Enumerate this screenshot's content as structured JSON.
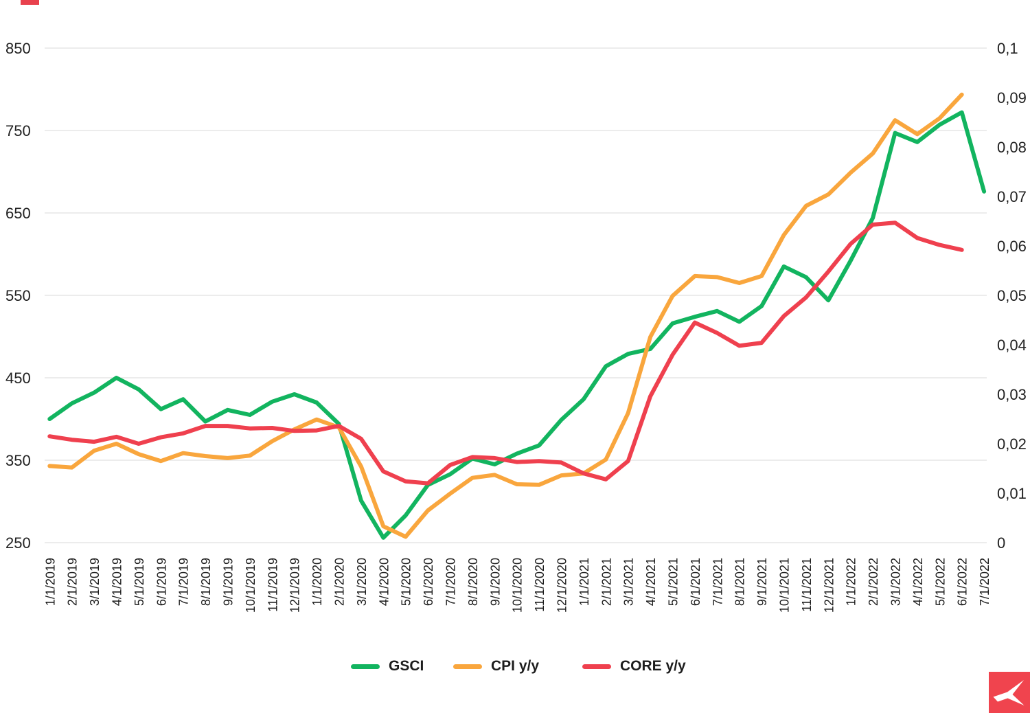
{
  "chart_data": {
    "type": "line",
    "title": "",
    "x_labels": [
      "1/1/2019",
      "2/1/2019",
      "3/1/2019",
      "4/1/2019",
      "5/1/2019",
      "6/1/2019",
      "7/1/2019",
      "8/1/2019",
      "9/1/2019",
      "10/1/2019",
      "11/1/2019",
      "12/1/2019",
      "1/1/2020",
      "2/1/2020",
      "3/1/2020",
      "4/1/2020",
      "5/1/2020",
      "6/1/2020",
      "7/1/2020",
      "8/1/2020",
      "9/1/2020",
      "10/1/2020",
      "11/1/2020",
      "12/1/2020",
      "1/1/2021",
      "2/1/2021",
      "3/1/2021",
      "4/1/2021",
      "5/1/2021",
      "6/1/2021",
      "7/1/2021",
      "8/1/2021",
      "9/1/2021",
      "10/1/2021",
      "11/1/2021",
      "12/1/2021",
      "1/1/2022",
      "2/1/2022",
      "3/1/2022",
      "4/1/2022",
      "5/1/2022",
      "6/1/2022",
      "7/1/2022"
    ],
    "series": [
      {
        "name": "GSCI",
        "color": "#12b45f",
        "axis": "left",
        "values": [
          400,
          419,
          432,
          450,
          436,
          412,
          424,
          397,
          411,
          405,
          421,
          430,
          420,
          394,
          301,
          256,
          283,
          320,
          333,
          352,
          345,
          358,
          368,
          399,
          424,
          464,
          479,
          485,
          516,
          524,
          531,
          518,
          537,
          585,
          572,
          544,
          592,
          644,
          747,
          736,
          757,
          772,
          676
        ]
      },
      {
        "name": "CPI y/y",
        "color": "#f9a63d",
        "axis": "right",
        "values": [
          0.0155,
          0.0152,
          0.0186,
          0.02,
          0.0179,
          0.0165,
          0.0181,
          0.0175,
          0.0171,
          0.0176,
          0.0205,
          0.0229,
          0.0249,
          0.0233,
          0.0154,
          0.0033,
          0.0012,
          0.0065,
          0.0099,
          0.0131,
          0.0137,
          0.0118,
          0.0117,
          0.0136,
          0.014,
          0.0168,
          0.0262,
          0.0416,
          0.0499,
          0.0539,
          0.0537,
          0.0525,
          0.0539,
          0.0622,
          0.0681,
          0.0704,
          0.0748,
          0.0787,
          0.0854,
          0.0826,
          0.0858,
          0.0906
        ]
      },
      {
        "name": "CORE y/y",
        "color": "#ef404e",
        "axis": "right",
        "values": [
          0.0215,
          0.0208,
          0.0204,
          0.0214,
          0.02,
          0.0213,
          0.0221,
          0.0236,
          0.0236,
          0.0231,
          0.0232,
          0.0226,
          0.0227,
          0.0236,
          0.021,
          0.0144,
          0.0124,
          0.012,
          0.0157,
          0.0173,
          0.0171,
          0.0163,
          0.0165,
          0.0162,
          0.014,
          0.0128,
          0.0165,
          0.0296,
          0.038,
          0.0445,
          0.0424,
          0.0398,
          0.0404,
          0.0458,
          0.0496,
          0.0548,
          0.0604,
          0.0643,
          0.0647,
          0.0616,
          0.0602,
          0.0592
        ]
      }
    ],
    "left_axis": {
      "ticks": [
        "850",
        "750",
        "650",
        "550",
        "450",
        "350",
        "250"
      ],
      "values": [
        850,
        750,
        650,
        550,
        450,
        350,
        250
      ],
      "min": 250,
      "max": 850
    },
    "right_axis": {
      "ticks": [
        "0,1",
        "0,09",
        "0,08",
        "0,07",
        "0,06",
        "0,05",
        "0,04",
        "0,03",
        "0,02",
        "0,01",
        "0"
      ],
      "values": [
        0.1,
        0.09,
        0.08,
        0.07,
        0.06,
        0.05,
        0.04,
        0.03,
        0.02,
        0.01,
        0
      ],
      "min": 0,
      "max": 0.1
    },
    "grid": true,
    "legend_position": "bottom"
  },
  "colors": {
    "grid": "#d9d9d9",
    "axis_text": "#212121",
    "x_label_text": "#1c1c1c",
    "top_left_dash": "#e8414d",
    "logo_background": "#f0444e",
    "logo_glyph": "#ffffff"
  },
  "branding": {
    "logo_name": "xtb-logo"
  }
}
